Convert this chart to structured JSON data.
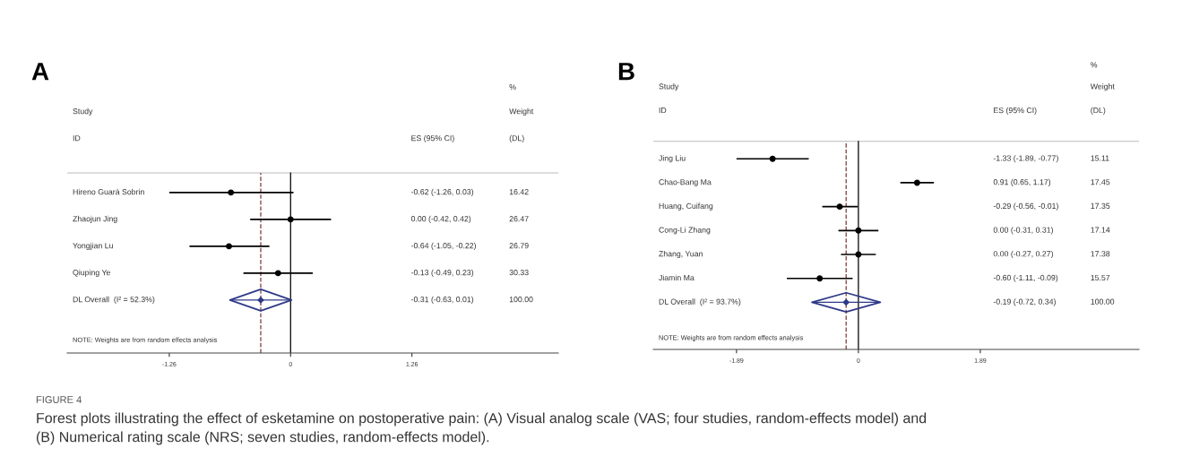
{
  "chart_data": [
    {
      "type": "scatter",
      "orientation": "horizontal",
      "title": "A",
      "categories": [
        "Hireno Guará Sobrin",
        "Zhaojun Jing",
        "Yongjian Lu",
        "Qiuping Ye",
        "DL Overall  (I² = 52.3%)"
      ],
      "series": [
        {
          "color": "#000000",
          "marker": "circle",
          "values": [
            -0.62,
            0.0,
            -0.64,
            -0.13,
            null
          ],
          "errors": [
            [
              -1.26,
              0.03
            ],
            [
              -0.42,
              0.42
            ],
            [
              -1.05,
              -0.22
            ],
            [
              -0.49,
              0.23
            ],
            null
          ]
        },
        {
          "color": "#2e3a87",
          "marker": "diamond",
          "values": [
            null,
            null,
            null,
            null,
            -0.31
          ],
          "errors": [
            null,
            null,
            null,
            null,
            [
              -0.63,
              0.01
            ]
          ]
        }
      ],
      "xlim": [
        -2.32,
        2.78
      ],
      "xticks": [
        -1.26,
        0,
        1.26
      ],
      "grid": false,
      "ref_lines": [
        {
          "axis": "x",
          "value": 0,
          "color": "#000000",
          "line_style": "solid"
        },
        {
          "axis": "x",
          "value": -0.31,
          "color": "#7a3b3b",
          "line_style": "dashed"
        }
      ],
      "annotations": [
        "Study",
        "ID",
        "ES (95% CI)",
        "%",
        "Weight",
        "(DL)",
        "NOTE: Weights are from random effects analysis",
        "-0.62 (-1.26, 0.03)",
        "0.00 (-0.42, 0.42)",
        "-0.64 (-1.05, -0.22)",
        "-0.13 (-0.49, 0.23)",
        "-0.31 (-0.63, 0.01)",
        "16.42",
        "26.47",
        "26.79",
        "30.33",
        "100.00"
      ]
    },
    {
      "type": "scatter",
      "orientation": "horizontal",
      "title": "B",
      "categories": [
        "Jing Liu",
        "Chao-Bang Ma",
        "Huang, Cuifang",
        "Cong-Li Zhang",
        "Zhang, Yuan",
        "Jiamin Ma",
        "DL Overall  (I² = 93.7%)"
      ],
      "series": [
        {
          "color": "#000000",
          "marker": "circle",
          "values": [
            -1.33,
            0.91,
            -0.29,
            0.0,
            0.0,
            -0.6,
            null
          ],
          "errors": [
            [
              -1.89,
              -0.77
            ],
            [
              0.65,
              1.17
            ],
            [
              -0.56,
              -0.01
            ],
            [
              -0.31,
              0.31
            ],
            [
              -0.27,
              0.27
            ],
            [
              -1.11,
              -0.09
            ],
            null
          ]
        },
        {
          "color": "#2e3a87",
          "marker": "diamond",
          "values": [
            null,
            null,
            null,
            null,
            null,
            null,
            -0.19
          ],
          "errors": [
            null,
            null,
            null,
            null,
            null,
            null,
            [
              -0.72,
              0.34
            ]
          ]
        }
      ],
      "xlim": [
        -3.18,
        4.35
      ],
      "xticks": [
        -1.89,
        0,
        1.89
      ],
      "grid": false,
      "ref_lines": [
        {
          "axis": "x",
          "value": 0,
          "color": "#000000",
          "line_style": "solid"
        },
        {
          "axis": "x",
          "value": -0.19,
          "color": "#7a3b3b",
          "line_style": "dashed"
        }
      ],
      "annotations": [
        "Study",
        "ID",
        "ES (95% CI)",
        "%",
        "Weight",
        "(DL)",
        "NOTE: Weights are from random effects analysis",
        "-1.33 (-1.89, -0.77)",
        "0.91 (0.65, 1.17)",
        "-0.29 (-0.56, -0.01)",
        "0.00 (-0.31, 0.31)",
        "0.00 (-0.27, 0.27)",
        "-0.60 (-1.11, -0.09)",
        "-0.19 (-0.72, 0.34)",
        "15.11",
        "17.45",
        "17.35",
        "17.14",
        "17.38",
        "15.57",
        "100.00",
        "FIGURE 4",
        "Forest plots illustrating the effect of esketamine on postoperative pain: (A) Visual analog scale (VAS; four studies, random-effects model) and",
        "(B) Numerical rating scale (NRS; seven studies, random-effects model)."
      ]
    }
  ]
}
